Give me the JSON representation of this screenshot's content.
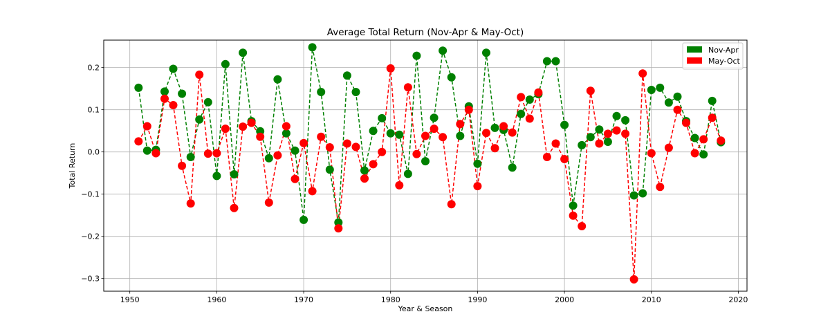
{
  "chart_data": {
    "type": "line",
    "title": "Average Total Return (Nov-Apr & May-Oct)",
    "xlabel": "Year & Season",
    "ylabel": "Total Return",
    "xlim": [
      1947,
      2021
    ],
    "ylim": [
      -0.33,
      0.265
    ],
    "xticks": [
      1950,
      1960,
      1970,
      1980,
      1990,
      2000,
      2010,
      2020
    ],
    "xtick_labels": [
      "1950",
      "1960",
      "1970",
      "1980",
      "1990",
      "2000",
      "2010",
      "2020"
    ],
    "yticks": [
      -0.3,
      -0.2,
      -0.1,
      0.0,
      0.1,
      0.2
    ],
    "ytick_labels": [
      "−0.3",
      "−0.2",
      "−0.1",
      "0.0",
      "0.1",
      "0.2"
    ],
    "grid": true,
    "legend_position": "top-right",
    "x": [
      1951,
      1952,
      1953,
      1954,
      1955,
      1956,
      1957,
      1958,
      1959,
      1960,
      1961,
      1962,
      1963,
      1964,
      1965,
      1966,
      1967,
      1968,
      1969,
      1970,
      1971,
      1972,
      1973,
      1974,
      1975,
      1976,
      1977,
      1978,
      1979,
      1980,
      1981,
      1982,
      1983,
      1984,
      1985,
      1986,
      1987,
      1988,
      1989,
      1990,
      1991,
      1992,
      1993,
      1994,
      1995,
      1996,
      1997,
      1998,
      1999,
      2000,
      2001,
      2002,
      2003,
      2004,
      2005,
      2006,
      2007,
      2008,
      2009,
      2010,
      2011,
      2012,
      2013,
      2014,
      2015,
      2016,
      2017,
      2018
    ],
    "series": [
      {
        "name": "Nov-Apr",
        "color": "#008000",
        "values": [
          0.152,
          0.003,
          0.005,
          0.143,
          0.197,
          0.138,
          -0.012,
          0.077,
          0.118,
          -0.057,
          0.208,
          -0.053,
          0.235,
          0.073,
          0.049,
          -0.015,
          0.172,
          0.044,
          0.003,
          -0.161,
          0.248,
          0.142,
          -0.042,
          -0.167,
          0.181,
          0.142,
          -0.044,
          0.05,
          0.08,
          0.044,
          0.041,
          -0.052,
          0.228,
          -0.022,
          0.081,
          0.24,
          0.177,
          0.038,
          0.108,
          -0.028,
          0.235,
          0.057,
          0.052,
          -0.037,
          0.09,
          0.124,
          0.137,
          0.215,
          0.215,
          0.064,
          -0.127,
          0.016,
          0.035,
          0.053,
          0.024,
          0.085,
          0.075,
          -0.103,
          -0.098,
          0.147,
          0.152,
          0.117,
          0.131,
          0.073,
          0.033,
          -0.006,
          0.121,
          0.023
        ]
      },
      {
        "name": "May-Oct",
        "color": "#ff0000",
        "values": [
          0.025,
          0.061,
          -0.003,
          0.126,
          0.111,
          -0.033,
          -0.122,
          0.183,
          -0.004,
          -0.003,
          0.055,
          -0.133,
          0.06,
          0.069,
          0.036,
          -0.12,
          -0.008,
          0.061,
          -0.064,
          0.021,
          -0.093,
          0.036,
          0.011,
          -0.181,
          0.02,
          0.012,
          -0.063,
          -0.029,
          0.0,
          0.198,
          -0.079,
          0.153,
          -0.005,
          0.038,
          0.055,
          0.035,
          -0.124,
          0.066,
          0.1,
          -0.081,
          0.045,
          0.009,
          0.061,
          0.046,
          0.13,
          0.079,
          0.141,
          -0.012,
          0.02,
          -0.017,
          -0.151,
          -0.176,
          0.145,
          0.02,
          0.043,
          0.051,
          0.043,
          -0.302,
          0.186,
          -0.003,
          -0.083,
          0.01,
          0.1,
          0.069,
          -0.003,
          0.03,
          0.081,
          0.027
        ]
      }
    ]
  }
}
